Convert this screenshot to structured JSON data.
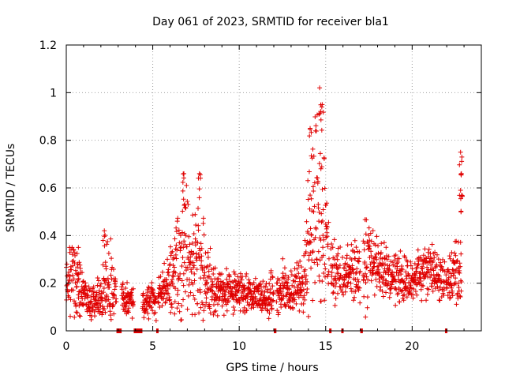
{
  "chart_data": {
    "type": "scatter",
    "title": "Day 061 of 2023, SRMTID for receiver bla1",
    "xlabel": "GPS time / hours",
    "ylabel": "SRMTID / TECUs",
    "xlim": [
      0,
      24
    ],
    "ylim": [
      0,
      1.2
    ],
    "xticks": [
      0,
      5,
      10,
      15,
      20
    ],
    "xtick_labels": [
      "0",
      "5",
      "10",
      "15",
      "20"
    ],
    "yticks": [
      0,
      0.2,
      0.4,
      0.6,
      0.8,
      1.0,
      1.2
    ],
    "ytick_labels": [
      "0",
      "0.2",
      "0.4",
      "0.6",
      "0.8",
      "1",
      "1.2"
    ],
    "grid": true,
    "marker": "+",
    "color": "#e00000",
    "series": [
      {
        "name": "SRMTID",
        "envelope": {
          "hours": [
            0,
            0.5,
            1,
            1.5,
            2,
            2.4,
            3,
            3.5,
            4,
            4.5,
            5,
            5.5,
            6,
            6.5,
            6.8,
            7.2,
            7.7,
            8,
            8.5,
            9,
            9.5,
            10,
            10.5,
            11,
            11.5,
            12,
            12.5,
            13,
            13.5,
            13.8,
            14,
            14.3,
            14.6,
            14.9,
            15.2,
            15.5,
            16,
            16.5,
            17,
            17.5,
            18,
            18.5,
            19,
            19.5,
            20,
            20.5,
            21,
            21.5,
            22,
            22.5,
            22.8
          ],
          "median": [
            0.16,
            0.22,
            0.15,
            0.12,
            0.14,
            0.2,
            0.15,
            0.12,
            0.14,
            0.12,
            0.13,
            0.16,
            0.22,
            0.28,
            0.32,
            0.25,
            0.3,
            0.22,
            0.18,
            0.17,
            0.18,
            0.16,
            0.16,
            0.15,
            0.14,
            0.17,
            0.18,
            0.16,
            0.18,
            0.22,
            0.4,
            0.55,
            0.5,
            0.45,
            0.3,
            0.25,
            0.22,
            0.24,
            0.26,
            0.3,
            0.27,
            0.24,
            0.22,
            0.22,
            0.21,
            0.24,
            0.25,
            0.24,
            0.2,
            0.26,
            0.22
          ],
          "spread": [
            0.08,
            0.1,
            0.06,
            0.04,
            0.05,
            0.1,
            0.06,
            0.04,
            0.05,
            0.04,
            0.04,
            0.05,
            0.1,
            0.16,
            0.2,
            0.12,
            0.18,
            0.1,
            0.06,
            0.05,
            0.05,
            0.05,
            0.05,
            0.04,
            0.04,
            0.06,
            0.06,
            0.05,
            0.07,
            0.1,
            0.2,
            0.28,
            0.3,
            0.18,
            0.1,
            0.08,
            0.06,
            0.08,
            0.1,
            0.12,
            0.08,
            0.06,
            0.06,
            0.06,
            0.05,
            0.06,
            0.07,
            0.06,
            0.06,
            0.08,
            0.1
          ]
        },
        "peaks": [
          {
            "x": 0.7,
            "y": 0.35
          },
          {
            "x": 2.2,
            "y": 0.42
          },
          {
            "x": 6.8,
            "y": 0.66
          },
          {
            "x": 7.7,
            "y": 0.66
          },
          {
            "x": 14.1,
            "y": 0.85
          },
          {
            "x": 14.65,
            "y": 1.02
          },
          {
            "x": 14.8,
            "y": 0.95
          },
          {
            "x": 22.8,
            "y": 0.75
          },
          {
            "x": 22.85,
            "y": 0.66
          },
          {
            "x": 22.8,
            "y": 0.59
          }
        ]
      }
    ],
    "gaps": [
      {
        "x_start": 2.9,
        "x_end": 3.2
      },
      {
        "x_start": 3.9,
        "x_end": 4.4
      },
      {
        "x_start": 5.2,
        "x_end": 5.3
      },
      {
        "x_start": 12.0,
        "x_end": 12.15
      },
      {
        "x_start": 15.2,
        "x_end": 15.3
      },
      {
        "x_start": 15.9,
        "x_end": 15.95
      },
      {
        "x_start": 17.0,
        "x_end": 17.15
      },
      {
        "x_start": 21.9,
        "x_end": 21.95
      }
    ]
  }
}
